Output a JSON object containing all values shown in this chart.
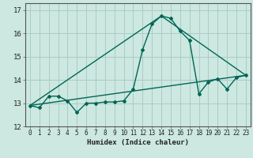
{
  "xlabel": "Humidex (Indice chaleur)",
  "background_color": "#cce8e0",
  "grid_color": "#aaccc4",
  "line_color": "#006655",
  "xlim": [
    -0.5,
    23.5
  ],
  "ylim": [
    12,
    17.3
  ],
  "xticks": [
    0,
    1,
    2,
    3,
    4,
    5,
    6,
    7,
    8,
    9,
    10,
    11,
    12,
    13,
    14,
    15,
    16,
    17,
    18,
    19,
    20,
    21,
    22,
    23
  ],
  "yticks": [
    12,
    13,
    14,
    15,
    16,
    17
  ],
  "line1_x": [
    0,
    1,
    2,
    3,
    4,
    5,
    6,
    7,
    8,
    9,
    10,
    11,
    12,
    13,
    14,
    15,
    16,
    17,
    18,
    19,
    20,
    21,
    22,
    23
  ],
  "line1_y": [
    12.9,
    12.8,
    13.3,
    13.3,
    13.1,
    12.6,
    13.0,
    13.0,
    13.05,
    13.05,
    13.1,
    13.6,
    15.3,
    16.4,
    16.75,
    16.65,
    16.1,
    15.7,
    13.4,
    13.9,
    14.05,
    13.6,
    14.1,
    14.2
  ],
  "line2_x": [
    0,
    23
  ],
  "line2_y": [
    12.9,
    14.2
  ],
  "line3_x": [
    0,
    14,
    23
  ],
  "line3_y": [
    12.9,
    16.75,
    14.2
  ]
}
